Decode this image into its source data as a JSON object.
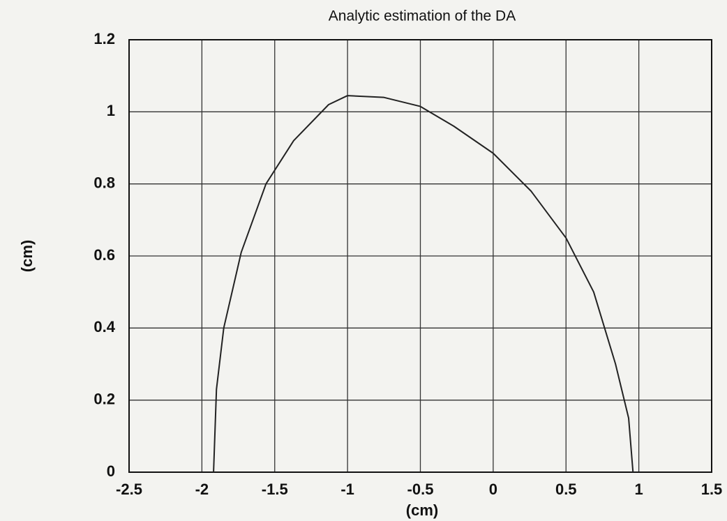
{
  "chart_data": {
    "type": "line",
    "title": "Analytic estimation of the DA",
    "xlabel": "(cm)",
    "ylabel": "(cm)",
    "x": [
      -1.92,
      -1.9,
      -1.85,
      -1.73,
      -1.56,
      -1.37,
      -1.13,
      -1.0,
      -0.75,
      -0.5,
      -0.27,
      0,
      0.26,
      0.5,
      0.69,
      0.84,
      0.93,
      0.96
    ],
    "series": [
      {
        "color": "#222222",
        "values": [
          0,
          0.23,
          0.4,
          0.61,
          0.8,
          0.92,
          1.02,
          1.045,
          1.04,
          1.015,
          0.96,
          0.885,
          0.78,
          0.65,
          0.5,
          0.3,
          0.15,
          0
        ]
      }
    ],
    "xlim": [
      -2.5,
      1.5
    ],
    "xticks": [
      -2.5,
      -2,
      -1.5,
      -1,
      -0.5,
      0,
      0.5,
      1,
      1.5
    ],
    "ylim": [
      0,
      1.2
    ],
    "yticks": [
      0,
      0.2,
      0.4,
      0.6,
      0.8,
      1,
      1.2
    ],
    "grid": true
  }
}
